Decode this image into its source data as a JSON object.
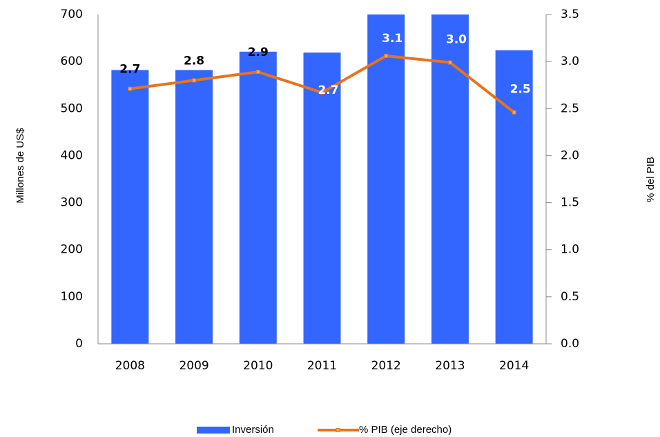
{
  "chart_data": {
    "type": "bar+line",
    "categories": [
      "2008",
      "2009",
      "2010",
      "2011",
      "2012",
      "2013",
      "2014"
    ],
    "series": [
      {
        "name": "Inversión",
        "color": "#3366ff",
        "type": "bar",
        "values": [
          582,
          582,
          621,
          619,
          700,
          700,
          624
        ]
      },
      {
        "name": "% PIB (eje derecho)",
        "color": "#e8731c",
        "type": "line",
        "axis": "y2",
        "values": [
          2.71,
          2.8,
          2.89,
          2.67,
          3.06,
          2.99,
          2.46
        ],
        "value_labels": [
          "2.7",
          "2.8",
          "2.9",
          "2.7",
          "3.1",
          "3.0",
          "2.5"
        ]
      }
    ],
    "ylabel": "Millones de US$",
    "y2label": "% del PIB",
    "ylim": [
      0,
      700
    ],
    "yticks": [
      0,
      100,
      200,
      300,
      400,
      500,
      600,
      700
    ],
    "y2lim": [
      0,
      3.5
    ],
    "y2ticks": [
      {
        "value": 0,
        "label": "0.0"
      },
      {
        "value": 0.5,
        "label": "0.5"
      },
      {
        "value": 1,
        "label": "1.0"
      },
      {
        "value": 1.5,
        "label": "1.5"
      },
      {
        "value": 2,
        "label": "2.0"
      },
      {
        "value": 2.5,
        "label": "2.5"
      },
      {
        "value": 3,
        "label": "3.0"
      },
      {
        "value": 3.5,
        "label": "3.5"
      }
    ],
    "grid": false,
    "legend": "bottom"
  }
}
